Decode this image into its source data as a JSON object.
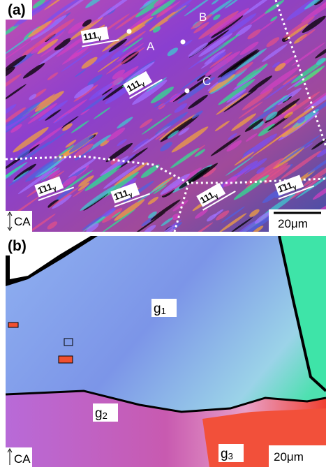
{
  "panel_a": {
    "label": "(a)",
    "points": [
      {
        "label": "A"
      },
      {
        "label": "B"
      },
      {
        "label": "C"
      }
    ],
    "plane_labels": [
      {
        "index": "111",
        "sub": "γ"
      },
      {
        "index": "111",
        "sub": "γ"
      },
      {
        "index": "1̄11",
        "sub": "γ"
      },
      {
        "index": "1̄11",
        "sub": "γ"
      },
      {
        "index": "111",
        "sub": "γ"
      },
      {
        "index": "1̄11",
        "sub": "γ"
      }
    ],
    "axis_label": "CA",
    "scale_bar": "20μm"
  },
  "panel_b": {
    "label": "(b)",
    "grains": [
      {
        "name": "g",
        "sub": "1"
      },
      {
        "name": "g",
        "sub": "2"
      },
      {
        "name": "g",
        "sub": "3"
      }
    ],
    "axis_label": "CA",
    "scale_bar": "20μm"
  }
}
